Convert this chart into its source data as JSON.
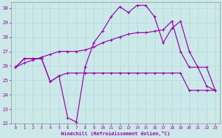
{
  "xlabel": "Windchill (Refroidissement éolien,°C)",
  "bg_color": "#cce8e8",
  "line_color": "#9900aa",
  "xlim": [
    -0.5,
    23.5
  ],
  "ylim": [
    22,
    30.4
  ],
  "yticks": [
    22,
    23,
    24,
    25,
    26,
    27,
    28,
    29,
    30
  ],
  "xticks": [
    0,
    1,
    2,
    3,
    4,
    5,
    6,
    7,
    8,
    9,
    10,
    11,
    12,
    13,
    14,
    15,
    16,
    17,
    18,
    19,
    20,
    21,
    22,
    23
  ],
  "series1_x": [
    0,
    1,
    2,
    3,
    4,
    5,
    6,
    7,
    8,
    9,
    10,
    11,
    12,
    13,
    14,
    15,
    16,
    17,
    18,
    19,
    20,
    21,
    22,
    23
  ],
  "series1_y": [
    25.9,
    26.5,
    26.5,
    26.5,
    24.9,
    25.3,
    25.5,
    25.5,
    25.5,
    25.5,
    25.5,
    25.5,
    25.5,
    25.5,
    25.5,
    25.5,
    25.5,
    25.5,
    25.5,
    25.5,
    24.3,
    24.3,
    24.3,
    24.3
  ],
  "series2_x": [
    0,
    1,
    2,
    3,
    4,
    5,
    6,
    7,
    8,
    9,
    10,
    11,
    12,
    13,
    14,
    15,
    16,
    17,
    18,
    19,
    20,
    21,
    22,
    23
  ],
  "series2_y": [
    25.9,
    26.5,
    26.5,
    26.5,
    24.9,
    25.3,
    22.4,
    22.1,
    25.9,
    27.6,
    28.4,
    29.4,
    30.1,
    29.7,
    30.2,
    30.2,
    29.4,
    27.6,
    28.6,
    29.1,
    27.0,
    25.9,
    24.6,
    24.3
  ],
  "series3_x": [
    0,
    1,
    2,
    3,
    4,
    5,
    6,
    7,
    8,
    9,
    10,
    11,
    12,
    13,
    14,
    15,
    16,
    17,
    18,
    19,
    20,
    21,
    22,
    23
  ],
  "series3_y": [
    25.9,
    26.2,
    26.4,
    26.6,
    26.8,
    27.0,
    27.0,
    27.0,
    27.1,
    27.3,
    27.6,
    27.8,
    28.0,
    28.2,
    28.3,
    28.3,
    28.4,
    28.5,
    29.1,
    27.0,
    25.9,
    25.9,
    25.9,
    24.3
  ]
}
